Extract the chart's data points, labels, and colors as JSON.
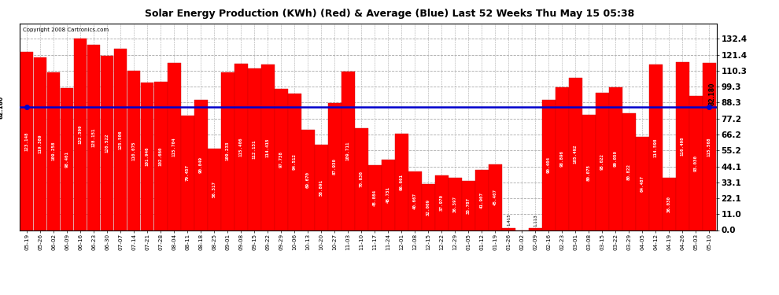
{
  "title": "Solar Energy Production (KWh) (Red) & Average (Blue) Last 52 Weeks Thu May 15 05:38",
  "copyright": "Copyright 2008 Cartronics.com",
  "average_value": 85.18,
  "ylim": [
    0,
    143
  ],
  "yticks": [
    0.0,
    11.0,
    22.1,
    33.1,
    44.1,
    55.2,
    66.2,
    77.2,
    88.3,
    99.3,
    110.3,
    121.4,
    132.4
  ],
  "bar_color": "#FF0000",
  "avg_line_color": "#0000CC",
  "bg_color": "#FFFFFF",
  "plot_bg_color": "#FFFFFF",
  "grid_color": "#AAAAAA",
  "categories": [
    "05-19",
    "05-26",
    "06-02",
    "06-09",
    "06-16",
    "06-23",
    "06-30",
    "07-07",
    "07-14",
    "07-21",
    "07-28",
    "08-04",
    "08-11",
    "08-18",
    "08-25",
    "09-01",
    "09-08",
    "09-15",
    "09-22",
    "09-29",
    "10-06",
    "10-13",
    "10-20",
    "10-27",
    "11-03",
    "11-10",
    "11-17",
    "11-24",
    "12-01",
    "12-08",
    "12-15",
    "12-22",
    "12-29",
    "01-05",
    "01-12",
    "01-19",
    "01-26",
    "02-02",
    "02-09",
    "02-16",
    "02-23",
    "03-01",
    "03-08",
    "03-15",
    "03-22",
    "03-29",
    "04-05",
    "04-12",
    "04-19",
    "04-26",
    "05-03",
    "05-10"
  ],
  "values": [
    123.148,
    119.389,
    109.258,
    98.401,
    132.399,
    128.151,
    120.522,
    125.506,
    110.075,
    101.946,
    102.66,
    115.704,
    79.457,
    90.049,
    56.317,
    109.233,
    115.406,
    112.131,
    114.415,
    97.738,
    94.512,
    69.67,
    58.891,
    87.93,
    109.711,
    70.636,
    45.084,
    48.731,
    66.661,
    40.667,
    32.009,
    37.97,
    36.397,
    33.787,
    41.907,
    45.407,
    1.415,
    0.0,
    1.113,
    90.404,
    98.896,
    105.492,
    80.075,
    95.022,
    99.05,
    80.822,
    64.487,
    114.598,
    36.03,
    116.498,
    93.03,
    115.568
  ]
}
